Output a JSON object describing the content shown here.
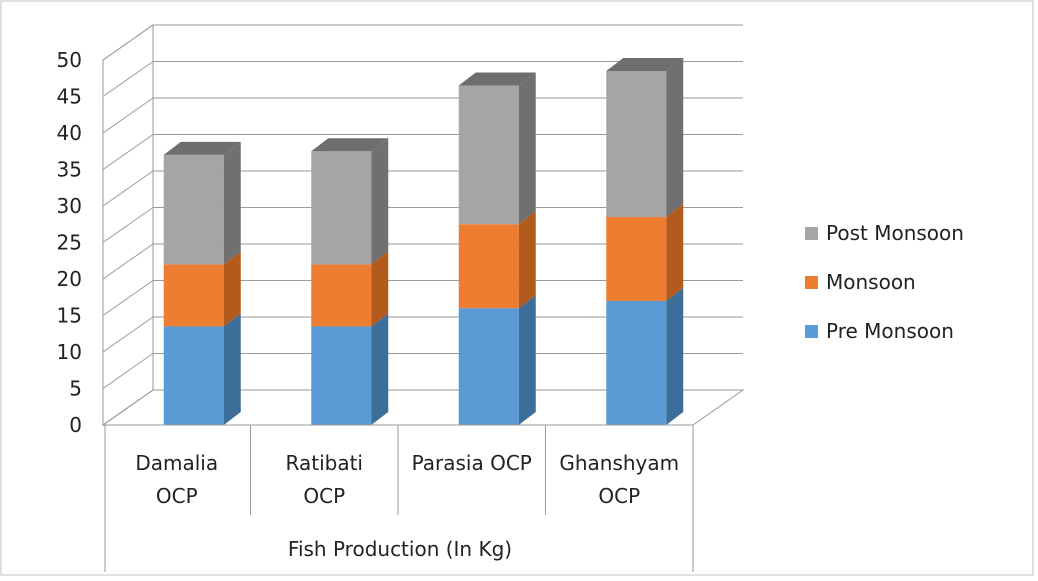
{
  "chart_data": {
    "type": "bar",
    "stacked": true,
    "three_d": true,
    "title": "",
    "xlabel": "Fish Production (In Kg)",
    "ylabel": "",
    "ylim": [
      0,
      50
    ],
    "yticks": [
      0,
      5,
      10,
      15,
      20,
      25,
      30,
      35,
      40,
      45,
      50
    ],
    "grid": true,
    "legend_position": "right",
    "categories": [
      [
        "Damalia",
        "OCP"
      ],
      [
        "Ratibati",
        "OCP"
      ],
      [
        "Parasia OCP"
      ],
      [
        "Ghanshyam",
        "OCP"
      ]
    ],
    "series": [
      {
        "name": "Pre Monsoon",
        "color": "#5B9BD5",
        "side_color": "#3D6D99",
        "values": [
          13.5,
          13.5,
          16,
          17
        ]
      },
      {
        "name": "Monsoon",
        "color": "#ED7D31",
        "side_color": "#B35A1D",
        "values": [
          8.5,
          8.5,
          11.5,
          11.5
        ]
      },
      {
        "name": "Post Monsoon",
        "color": "#A5A5A5",
        "side_color": "#707070",
        "values": [
          15,
          15.5,
          19,
          20
        ]
      }
    ],
    "legend_order": [
      "Post Monsoon",
      "Monsoon",
      "Pre Monsoon"
    ]
  },
  "colors": {
    "gridline": "#9A9A9A",
    "axis_text": "#222222",
    "border": "#BFBFBF"
  }
}
